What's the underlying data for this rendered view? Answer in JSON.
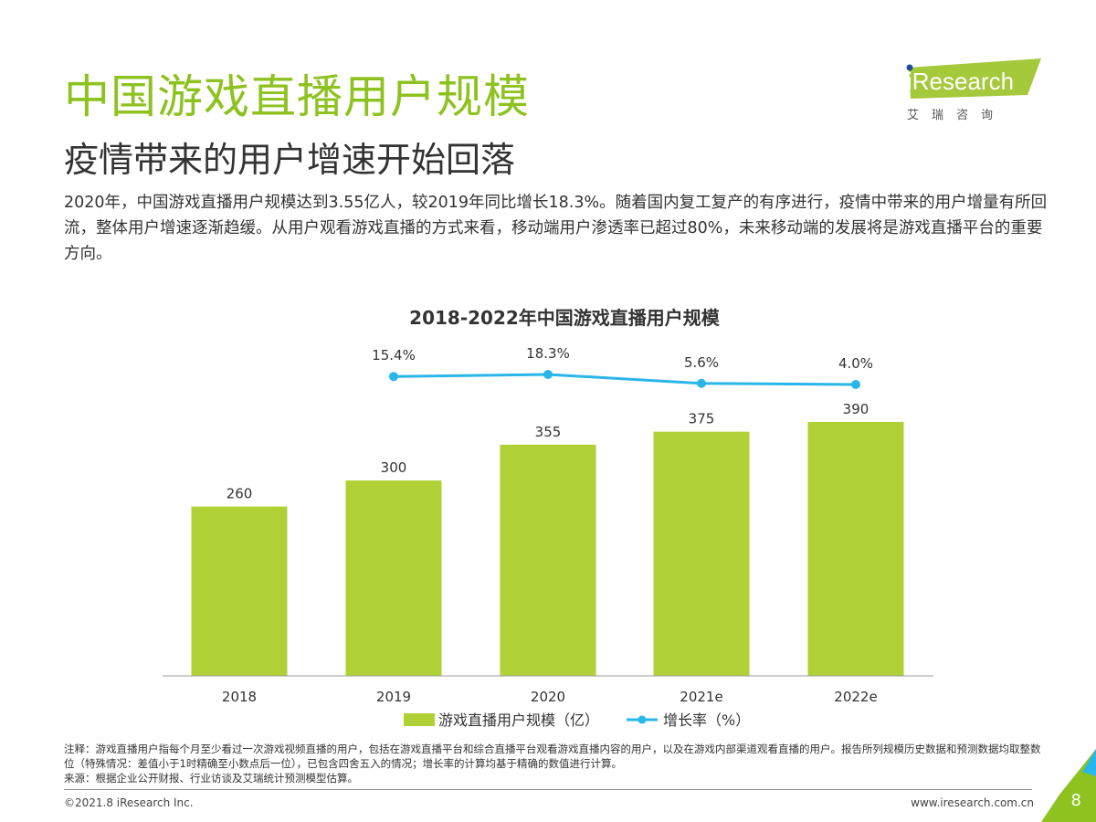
{
  "header": {
    "title": "中国游戏直播用户规模",
    "subtitle": "疫情带来的用户增速开始回落"
  },
  "description": "2020年，中国游戏直播用户规模达到3.55亿人，较2019年同比增长18.3%。随着国内复工复产的有序进行，疫情中带来的用户增量有所回流，整体用户增速逐渐趋缓。从用户观看游戏直播的方式来看，移动端用户渗透率已超过80%，未来移动端的发展将是游戏直播平台的重要方向。",
  "logo": {
    "text": "iResearch",
    "cn": "艾 瑞 咨 询",
    "color": "#a4c93a",
    "dot_color": "#1f4e9c"
  },
  "chart_data": {
    "type": "bar+line",
    "title": "2018-2022年中国游戏直播用户规模",
    "categories": [
      "2018",
      "2019",
      "2020",
      "2021e",
      "2022e"
    ],
    "series": [
      {
        "name": "游戏直播用户规模（亿）",
        "type": "bar",
        "values": [
          260,
          300,
          355,
          375,
          390
        ],
        "labels": [
          "260",
          "300",
          "355",
          "375",
          "390"
        ],
        "color": "#b0d136"
      },
      {
        "name": "增长率（%）",
        "type": "line",
        "values": [
          15.4,
          18.3,
          5.6,
          4.0
        ],
        "x": [
          "2019",
          "2020",
          "2021e",
          "2022e"
        ],
        "labels": [
          "15.4%",
          "18.3%",
          "5.6%",
          "4.0%"
        ],
        "color": "#29b6e8"
      }
    ],
    "legend": "bottom",
    "grid": false
  },
  "footer": {
    "note": "注释：游戏直播用户指每个月至少看过一次游戏视频直播的用户，包括在游戏直播平台和综合直播平台观看游戏直播内容的用户，以及在游戏内部渠道观看直播的用户。报告所列规模历史数据和预测数据均取整数位（特殊情况：差值小于1时精确至小数点后一位），已包含四舍五入的情况；增长率的计算均基于精确的数值进行计算。",
    "source": "来源：根据企业公开财报、行业访谈及艾瑞统计预测模型估算。",
    "copyright": "©2021.8 iResearch Inc.",
    "url": "www.iresearch.com.cn",
    "page": "8"
  },
  "colors": {
    "accent": "#8dc21f"
  }
}
